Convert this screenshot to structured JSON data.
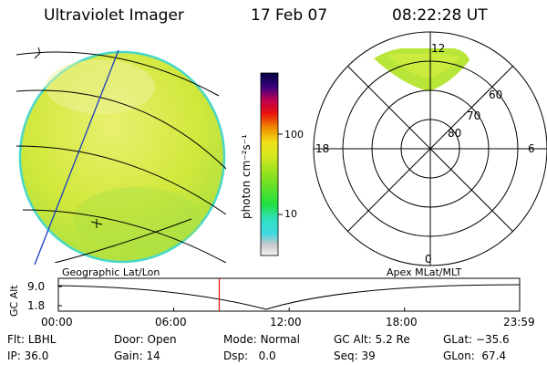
{
  "header": {
    "title": "Ultraviolet Imager",
    "date": "17 Feb 07",
    "time": "08:22:28 UT"
  },
  "colorbar": {
    "unit_label": "photon cm⁻²s⁻¹",
    "ticks": [
      {
        "value": 100,
        "label": "100"
      },
      {
        "value": 10,
        "label": "10"
      }
    ],
    "scale": "log"
  },
  "polar": {
    "mlt_labels": [
      "12",
      "18",
      "6",
      "0"
    ],
    "mlat_labels": [
      "60",
      "70",
      "80"
    ]
  },
  "panels": {
    "left_label": "Geographic Lat/Lon",
    "right_label": "Apex MLat/MLT"
  },
  "altitude_plot": {
    "ylabel": "GC Alt",
    "y_ticks": [
      "9.0",
      "1.8"
    ],
    "x_ticks": [
      "00:00",
      "06:00",
      "12:00",
      "18:00",
      "23:59"
    ],
    "current_time_marker": "08:22"
  },
  "status": {
    "filter": {
      "label": "Flt:",
      "value": "LBHL"
    },
    "ip": {
      "label": "IP:",
      "value": "36.0"
    },
    "door": {
      "label": "Door:",
      "value": "Open"
    },
    "gain": {
      "label": "Gain:",
      "value": "14"
    },
    "mode": {
      "label": "Mode:",
      "value": "Normal"
    },
    "dsp": {
      "label": "Dsp:",
      "value": "0.0"
    },
    "gc_alt": {
      "label": "GC Alt:",
      "value": "5.2 Re"
    },
    "seq": {
      "label": "Seq:",
      "value": "39"
    },
    "glat": {
      "label": "GLat:",
      "value": "−35.6"
    },
    "glon": {
      "label": "GLon:",
      "value": "67.4"
    }
  },
  "colors": {
    "disk_fill": "#cfe63a",
    "disk_edge": "#40d8d0",
    "grid_lines": "#000000",
    "meridian": "#1a3cc0",
    "time_marker": "#e01010"
  }
}
